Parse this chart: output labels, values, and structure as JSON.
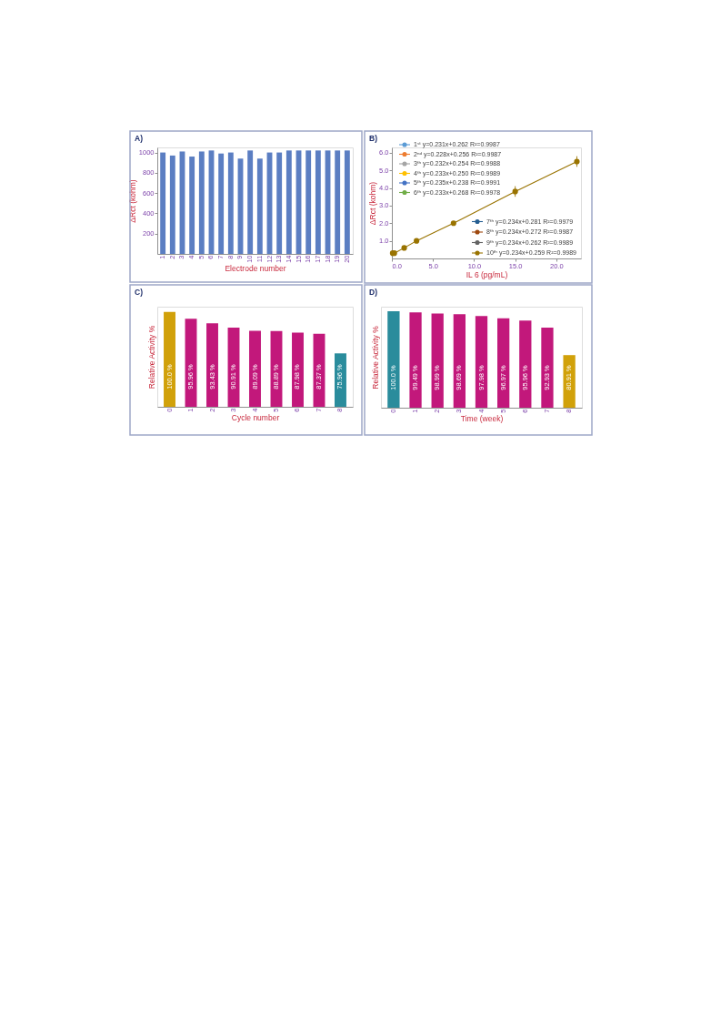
{
  "chart_data": [
    {
      "type": "bar",
      "title": "A)",
      "xlabel": "Electrode number",
      "ylabel": "ΔRct (kohm)",
      "categories": [
        "1",
        "2",
        "3",
        "4",
        "5",
        "6",
        "7",
        "8",
        "9",
        "10",
        "11",
        "12",
        "13",
        "14",
        "15",
        "16",
        "17",
        "18",
        "19",
        "20"
      ],
      "values": [
        1000,
        970,
        1010,
        960,
        1010,
        1020,
        990,
        1000,
        940,
        1020,
        940,
        1000,
        1000,
        1020,
        1020,
        1020,
        1020,
        1020,
        1020,
        1020
      ],
      "color": "#5b7ec2",
      "ylim": [
        0,
        1050
      ],
      "yticks": [
        200,
        400,
        600,
        800,
        1000
      ]
    },
    {
      "type": "line",
      "title": "B)",
      "xlabel": "IL 6 (pg/mL)",
      "ylabel": "ΔRct (kohm)",
      "marker": "circle",
      "legend": "top left",
      "x": [
        0.1,
        0.3,
        1.5,
        3,
        7.5,
        15,
        22.5
      ],
      "xlim": [
        0,
        23
      ],
      "ylim": [
        0,
        6.3
      ],
      "xticks": [
        {
          "value": 0,
          "label": "0.0"
        },
        {
          "value": 5,
          "label": "5.0"
        },
        {
          "value": 10,
          "label": "10.0"
        },
        {
          "value": 15,
          "label": "15.0"
        },
        {
          "value": 20,
          "label": "20.0"
        }
      ],
      "yticks": [
        {
          "value": 1,
          "label": "1.0"
        },
        {
          "value": 2,
          "label": "2.0"
        },
        {
          "value": 3,
          "label": "3.0"
        },
        {
          "value": 4,
          "label": "4.0"
        },
        {
          "value": 5,
          "label": "5.0"
        },
        {
          "value": 6,
          "label": "6.0"
        }
      ],
      "series": [
        {
          "name": "1ˢᵗ y=0.231x+0.262 R²=0.9987",
          "color": "#5b9bd5",
          "values": [
            null,
            null,
            null,
            null,
            null,
            null,
            null
          ]
        },
        {
          "name": "2ⁿᵈ y=0.228x+0.256 R²=0.9987",
          "color": "#ed7d31",
          "values": [
            null,
            null,
            null,
            null,
            null,
            null,
            null
          ]
        },
        {
          "name": "3ᵗʰ y=0.232x+0.254 R²=0.9988",
          "color": "#a5a5a5",
          "values": [
            null,
            null,
            null,
            null,
            null,
            null,
            null
          ]
        },
        {
          "name": "4ᵗʰ y=0.233x+0.250 R²=0.9989",
          "color": "#ffc000",
          "values": [
            null,
            null,
            null,
            null,
            null,
            null,
            null
          ]
        },
        {
          "name": "5ᵗʰ y=0.235x+0.238 R²=0.9991",
          "color": "#4472c4",
          "values": [
            null,
            null,
            null,
            null,
            null,
            null,
            null
          ]
        },
        {
          "name": "6ᵗʰ y=0.233x+0.268 R²=0.9978",
          "color": "#70ad47",
          "values": [
            null,
            null,
            null,
            null,
            null,
            null,
            null
          ]
        },
        {
          "name": "7ᵗʰ y=0.234x+0.281 R²=0.9979",
          "color": "#255e91",
          "values": [
            null,
            null,
            null,
            null,
            null,
            null,
            null
          ]
        },
        {
          "name": "8ᵗʰ y=0.234x+0.272 R²=0.9987",
          "color": "#9e480e",
          "values": [
            null,
            null,
            null,
            null,
            null,
            null,
            null
          ]
        },
        {
          "name": "9ᵗʰ y=0.234x+0.262 R²=0.9989",
          "color": "#636363",
          "values": [
            null,
            null,
            null,
            null,
            null,
            null,
            null
          ]
        },
        {
          "name": "10ᵗʰ y=0.234x+0.259 R²=0.9989",
          "color": "#997300",
          "values": [
            0.3,
            0.3,
            0.6,
            1.0,
            2.0,
            3.8,
            5.5
          ],
          "errors": [
            null,
            null,
            null,
            null,
            null,
            0.3,
            0.3
          ]
        }
      ]
    },
    {
      "type": "bar",
      "title": "C)",
      "xlabel": "Cycle number",
      "ylabel": "Relative Activity %",
      "categories": [
        "0",
        "1",
        "2",
        "3",
        "4",
        "5",
        "6",
        "7",
        "8"
      ],
      "values": [
        100.0,
        95.96,
        93.43,
        90.91,
        89.09,
        88.89,
        87.98,
        87.37,
        75.96
      ],
      "value_labels": [
        "100.0 %",
        "95.96 %",
        "93.43 %",
        "90.91 %",
        "89.09 %",
        "88.89 %",
        "87.98 %",
        "87.37 %",
        "75.96 %"
      ],
      "colors": [
        "#d1a10a",
        "#c2187b",
        "#c2187b",
        "#c2187b",
        "#c2187b",
        "#c2187b",
        "#c2187b",
        "#c2187b",
        "#2a8c9c"
      ],
      "ylim": [
        45,
        103
      ],
      "tick_labels": "x"
    },
    {
      "type": "bar",
      "title": "D)",
      "xlabel": "Time (week)",
      "ylabel": "Relative Activity %",
      "categories": [
        "0",
        "1",
        "2",
        "3",
        "4",
        "5",
        "6",
        "7",
        "8"
      ],
      "values": [
        100.0,
        99.49,
        98.99,
        98.69,
        97.98,
        96.97,
        95.96,
        92.93,
        80.91
      ],
      "value_labels": [
        "100.0 %",
        "99.49 %",
        "98.99 %",
        "98.69 %",
        "97.98 %",
        "96.97 %",
        "95.96 %",
        "92.93 %",
        "80.91 %"
      ],
      "colors": [
        "#2a8c9c",
        "#c2187b",
        "#c2187b",
        "#c2187b",
        "#c2187b",
        "#c2187b",
        "#c2187b",
        "#c2187b",
        "#d1a10a"
      ],
      "ylim": [
        58,
        102
      ],
      "tick_labels": "x"
    }
  ]
}
